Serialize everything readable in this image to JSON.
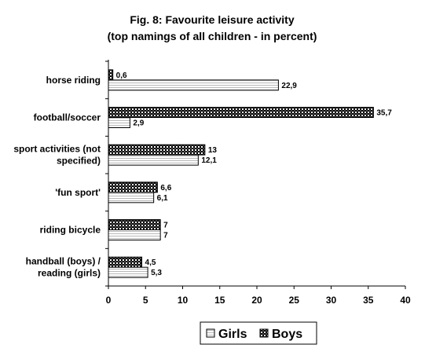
{
  "chart_data": {
    "type": "bar",
    "orientation": "horizontal",
    "title": "Fig. 8: Favourite leisure activity",
    "subtitle": "(top namings of all children - in percent)",
    "categories": [
      [
        "horse riding"
      ],
      [
        "football/soccer"
      ],
      [
        "sport activities (not",
        "specified)"
      ],
      [
        "'fun sport'"
      ],
      [
        "riding bicycle"
      ],
      [
        "handball (boys) /",
        "reading (girls)"
      ]
    ],
    "series": [
      {
        "name": "Boys",
        "values": [
          0.6,
          35.7,
          13,
          6.6,
          7,
          4.5
        ],
        "labels": [
          "0,6",
          "35,7",
          "13",
          "6,6",
          "7",
          "4,5"
        ],
        "pattern": "dark-checker"
      },
      {
        "name": "Girls",
        "values": [
          22.9,
          2.9,
          12.1,
          6.1,
          7,
          5.3
        ],
        "labels": [
          "22,9",
          "2,9",
          "12,1",
          "6,1",
          "7",
          "5,3"
        ],
        "pattern": "light-hatch"
      }
    ],
    "xlim": [
      0,
      40
    ],
    "xticks": [
      0,
      5,
      10,
      15,
      20,
      25,
      30,
      35,
      40
    ],
    "grid": false,
    "legend": {
      "position": "bottom",
      "order": [
        "Girls",
        "Boys"
      ]
    }
  }
}
